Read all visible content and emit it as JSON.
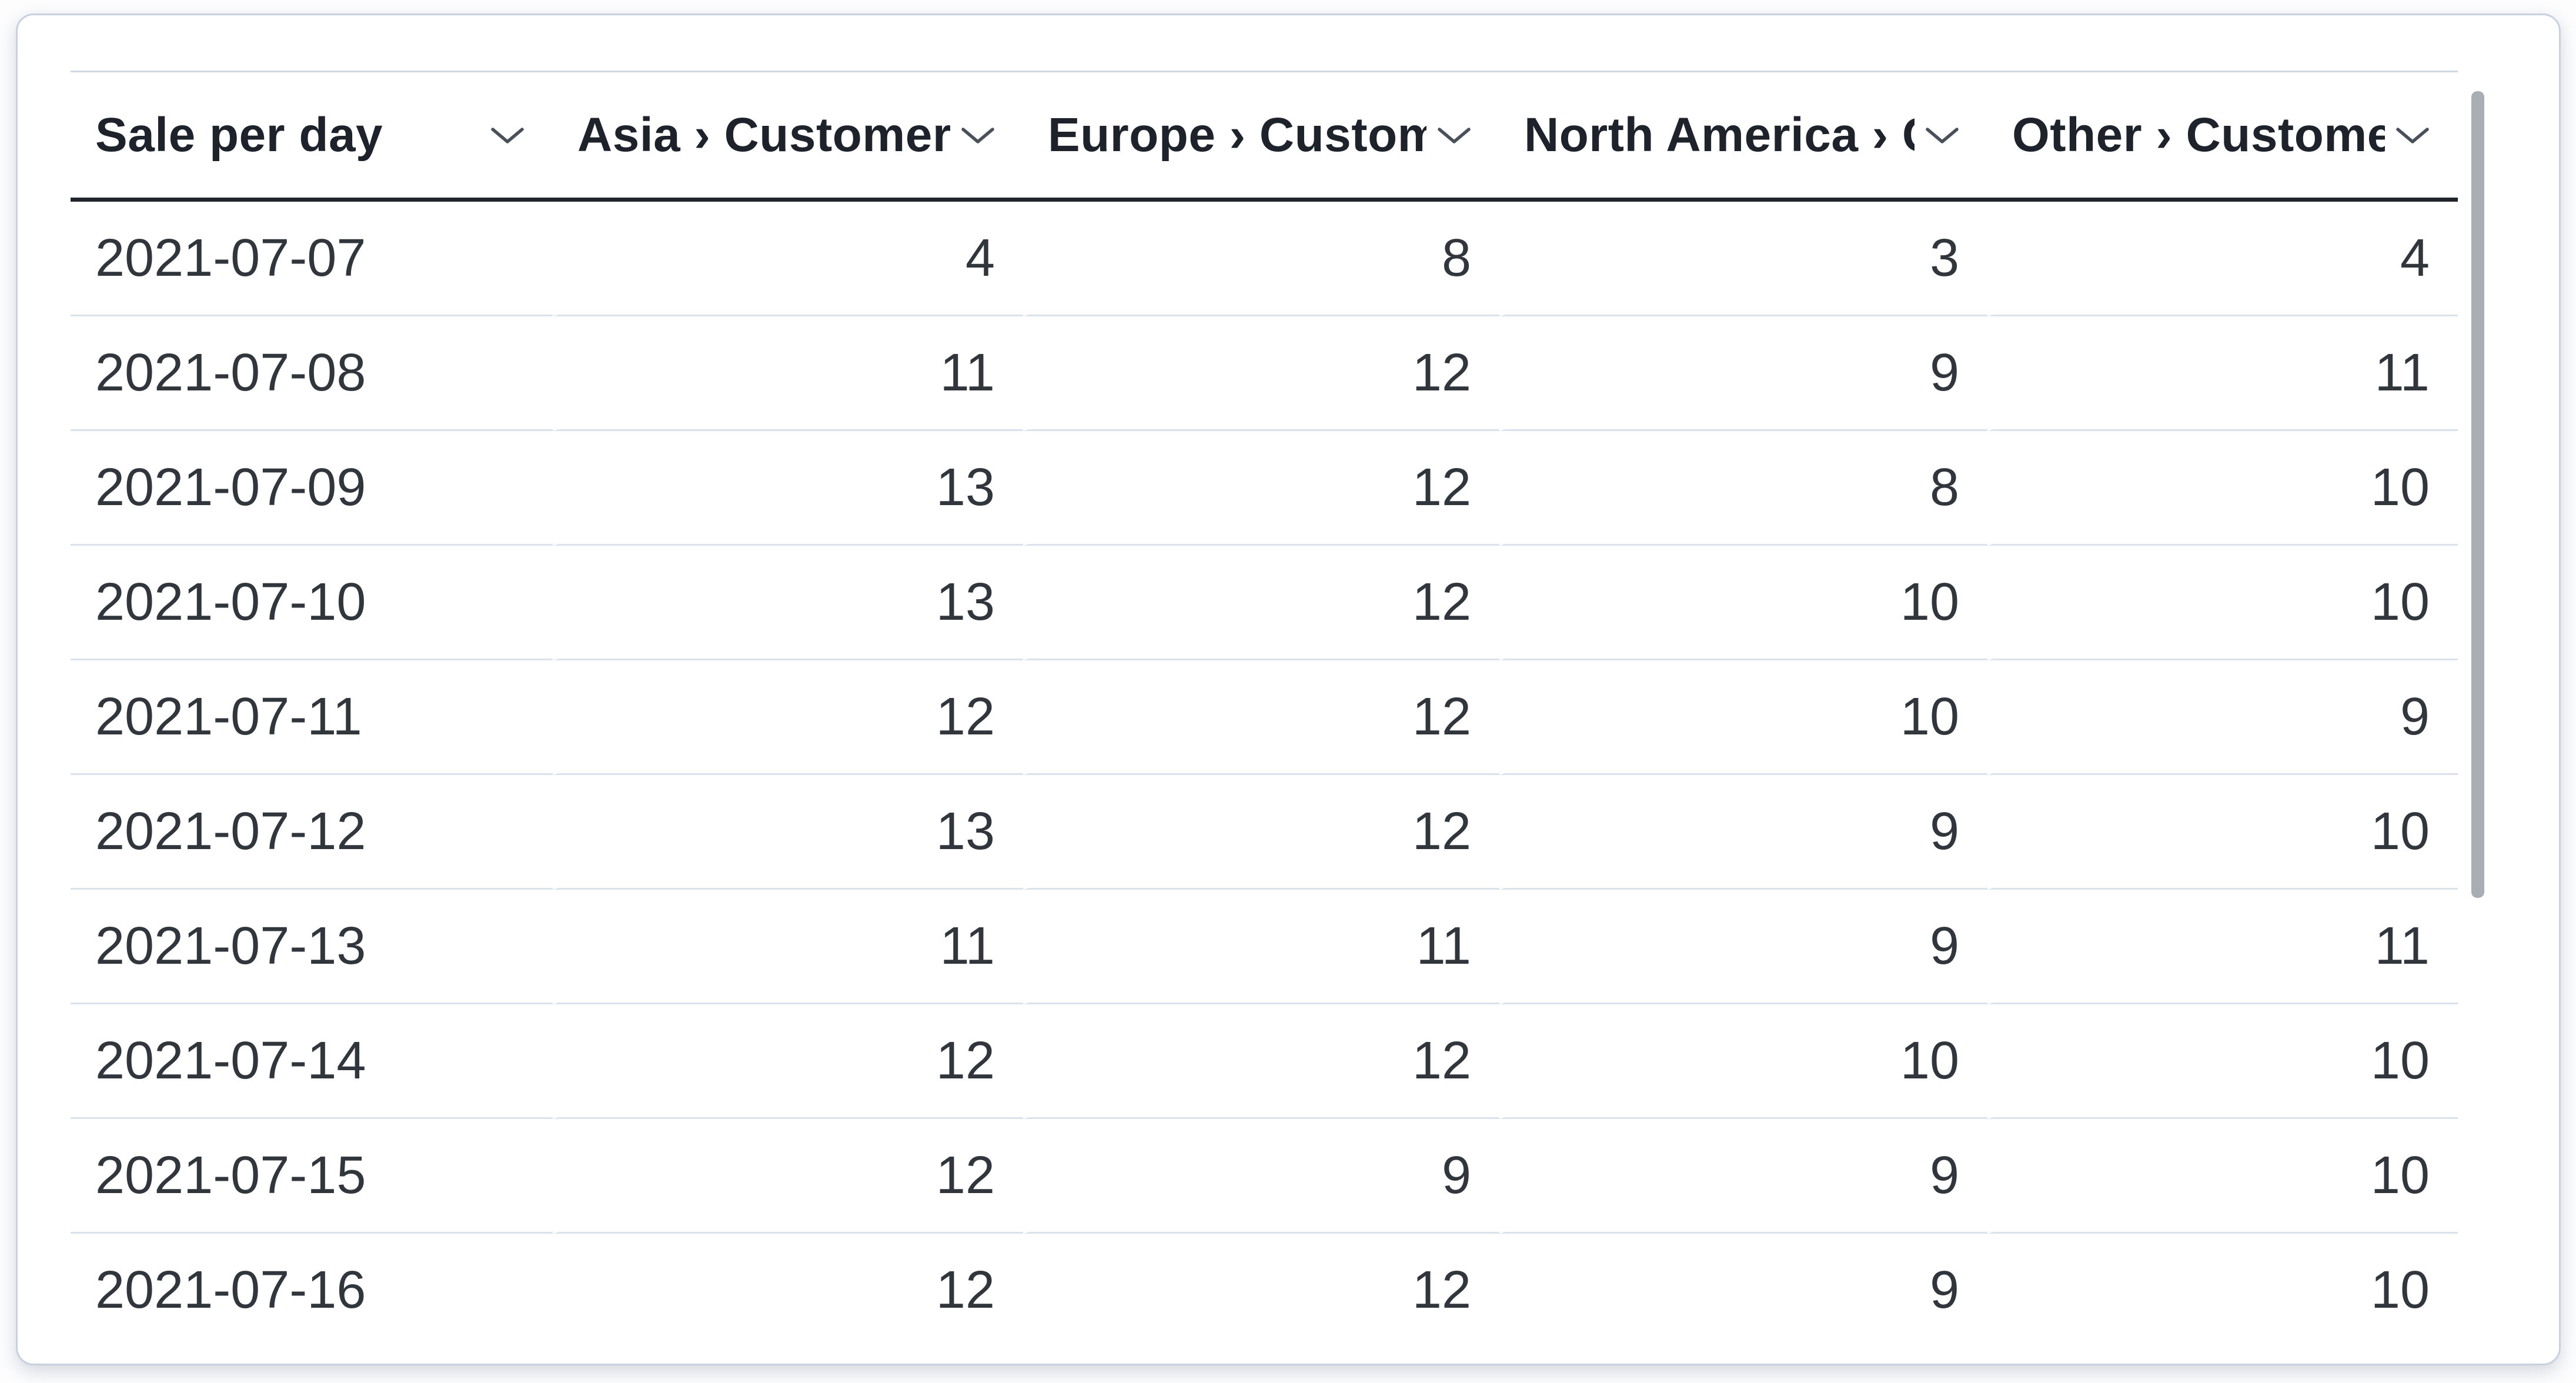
{
  "card": {
    "table": {
      "columns": [
        {
          "id": "sale-per-day",
          "label": "Sale per day",
          "align": "left"
        },
        {
          "id": "asia-customers",
          "label": "Asia › Customers",
          "align": "right"
        },
        {
          "id": "europe-customers",
          "label": "Europe › Customers",
          "align": "right"
        },
        {
          "id": "north-america-customers",
          "label": "North America › Customers",
          "align": "right"
        },
        {
          "id": "other-customers",
          "label": "Other › Customers",
          "align": "right"
        }
      ],
      "rows": [
        [
          "2021-07-07",
          "4",
          "8",
          "3",
          "4"
        ],
        [
          "2021-07-08",
          "11",
          "12",
          "9",
          "11"
        ],
        [
          "2021-07-09",
          "13",
          "12",
          "8",
          "10"
        ],
        [
          "2021-07-10",
          "13",
          "12",
          "10",
          "10"
        ],
        [
          "2021-07-11",
          "12",
          "12",
          "10",
          "9"
        ],
        [
          "2021-07-12",
          "13",
          "12",
          "9",
          "10"
        ],
        [
          "2021-07-13",
          "11",
          "11",
          "9",
          "11"
        ],
        [
          "2021-07-14",
          "12",
          "12",
          "10",
          "10"
        ],
        [
          "2021-07-15",
          "12",
          "9",
          "9",
          "10"
        ],
        [
          "2021-07-16",
          "12",
          "12",
          "9",
          "10"
        ]
      ]
    },
    "scrollbar": {
      "orientation": "vertical",
      "thumb_color": "#a9aeb5"
    },
    "colors": {
      "header_border": "#20242b",
      "row_border": "#dce2ec",
      "card_border": "#c9d1de",
      "header_text": "#1e222a",
      "cell_text": "#31353c"
    }
  }
}
